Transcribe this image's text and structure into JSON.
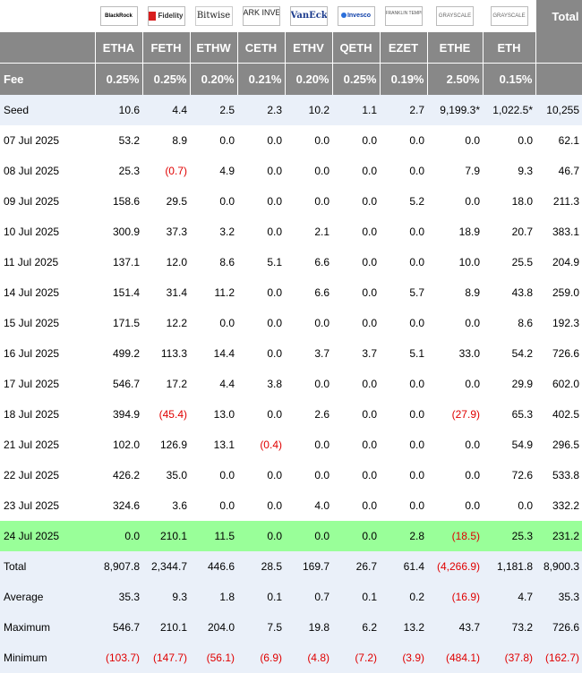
{
  "header": {
    "logos": [
      {
        "name": "blackrock-logo",
        "text": "BlackRock"
      },
      {
        "name": "fidelity-logo",
        "text": "Fidelity"
      },
      {
        "name": "bitwise-logo",
        "text": "Bitwise"
      },
      {
        "name": "ark-logo",
        "text": "ARK INVEST"
      },
      {
        "name": "vaneck-logo",
        "text": "VanEck"
      },
      {
        "name": "invesco-logo",
        "text": "Invesco"
      },
      {
        "name": "franklin-logo",
        "text": "FRANKLIN TEMPLETON"
      },
      {
        "name": "grayscale-logo-ethe",
        "text": "GRAYSCALE"
      },
      {
        "name": "grayscale-logo-eth",
        "text": "GRAYSCALE"
      }
    ],
    "total_label": "Total",
    "tickers": [
      "ETHA",
      "FETH",
      "ETHW",
      "CETH",
      "ETHV",
      "QETH",
      "EZET",
      "ETHE",
      "ETH"
    ],
    "fee_label": "Fee",
    "fees": [
      "0.25%",
      "0.25%",
      "0.20%",
      "0.21%",
      "0.20%",
      "0.25%",
      "0.19%",
      "2.50%",
      "0.15%"
    ]
  },
  "seed": {
    "label": "Seed",
    "values": [
      "10.6",
      "4.4",
      "2.5",
      "2.3",
      "10.2",
      "1.1",
      "2.7",
      "9,199.3*",
      "1,022.5*",
      "10,255"
    ]
  },
  "rows": [
    {
      "label": "07 Jul 2025",
      "values": [
        "53.2",
        "8.9",
        "0.0",
        "0.0",
        "0.0",
        "0.0",
        "0.0",
        "0.0",
        "0.0",
        "62.1"
      ],
      "highlight": false
    },
    {
      "label": "08 Jul 2025",
      "values": [
        "25.3",
        "(0.7)",
        "4.9",
        "0.0",
        "0.0",
        "0.0",
        "0.0",
        "7.9",
        "9.3",
        "46.7"
      ],
      "highlight": false
    },
    {
      "label": "09 Jul 2025",
      "values": [
        "158.6",
        "29.5",
        "0.0",
        "0.0",
        "0.0",
        "0.0",
        "5.2",
        "0.0",
        "18.0",
        "211.3"
      ],
      "highlight": false
    },
    {
      "label": "10 Jul 2025",
      "values": [
        "300.9",
        "37.3",
        "3.2",
        "0.0",
        "2.1",
        "0.0",
        "0.0",
        "18.9",
        "20.7",
        "383.1"
      ],
      "highlight": false
    },
    {
      "label": "11 Jul 2025",
      "values": [
        "137.1",
        "12.0",
        "8.6",
        "5.1",
        "6.6",
        "0.0",
        "0.0",
        "10.0",
        "25.5",
        "204.9"
      ],
      "highlight": false
    },
    {
      "label": "14 Jul 2025",
      "values": [
        "151.4",
        "31.4",
        "11.2",
        "0.0",
        "6.6",
        "0.0",
        "5.7",
        "8.9",
        "43.8",
        "259.0"
      ],
      "highlight": false
    },
    {
      "label": "15 Jul 2025",
      "values": [
        "171.5",
        "12.2",
        "0.0",
        "0.0",
        "0.0",
        "0.0",
        "0.0",
        "0.0",
        "8.6",
        "192.3"
      ],
      "highlight": false
    },
    {
      "label": "16 Jul 2025",
      "values": [
        "499.2",
        "113.3",
        "14.4",
        "0.0",
        "3.7",
        "3.7",
        "5.1",
        "33.0",
        "54.2",
        "726.6"
      ],
      "highlight": false
    },
    {
      "label": "17 Jul 2025",
      "values": [
        "546.7",
        "17.2",
        "4.4",
        "3.8",
        "0.0",
        "0.0",
        "0.0",
        "0.0",
        "29.9",
        "602.0"
      ],
      "highlight": false
    },
    {
      "label": "18 Jul 2025",
      "values": [
        "394.9",
        "(45.4)",
        "13.0",
        "0.0",
        "2.6",
        "0.0",
        "0.0",
        "(27.9)",
        "65.3",
        "402.5"
      ],
      "highlight": false
    },
    {
      "label": "21 Jul 2025",
      "values": [
        "102.0",
        "126.9",
        "13.1",
        "(0.4)",
        "0.0",
        "0.0",
        "0.0",
        "0.0",
        "54.9",
        "296.5"
      ],
      "highlight": false
    },
    {
      "label": "22 Jul 2025",
      "values": [
        "426.2",
        "35.0",
        "0.0",
        "0.0",
        "0.0",
        "0.0",
        "0.0",
        "0.0",
        "72.6",
        "533.8"
      ],
      "highlight": false
    },
    {
      "label": "23 Jul 2025",
      "values": [
        "324.6",
        "3.6",
        "0.0",
        "0.0",
        "4.0",
        "0.0",
        "0.0",
        "0.0",
        "0.0",
        "332.2"
      ],
      "highlight": false
    },
    {
      "label": "24 Jul 2025",
      "values": [
        "0.0",
        "210.1",
        "11.5",
        "0.0",
        "0.0",
        "0.0",
        "2.8",
        "(18.5)",
        "25.3",
        "231.2"
      ],
      "highlight": true
    }
  ],
  "summary": [
    {
      "label": "Total",
      "values": [
        "8,907.8",
        "2,344.7",
        "446.6",
        "28.5",
        "169.7",
        "26.7",
        "61.4",
        "(4,266.9)",
        "1,181.8",
        "8,900.3"
      ]
    },
    {
      "label": "Average",
      "values": [
        "35.3",
        "9.3",
        "1.8",
        "0.1",
        "0.7",
        "0.1",
        "0.2",
        "(16.9)",
        "4.7",
        "35.3"
      ]
    },
    {
      "label": "Maximum",
      "values": [
        "546.7",
        "210.1",
        "204.0",
        "7.5",
        "19.8",
        "6.2",
        "13.2",
        "43.7",
        "73.2",
        "726.6"
      ]
    },
    {
      "label": "Minimum",
      "values": [
        "(103.7)",
        "(147.7)",
        "(56.1)",
        "(6.9)",
        "(4.8)",
        "(7.2)",
        "(3.9)",
        "(484.1)",
        "(37.8)",
        "(162.7)"
      ]
    }
  ],
  "colors": {
    "header_gray": "#888888",
    "seed_summary_bg": "#eaf0f9",
    "highlight_green": "#99ff99",
    "negative_red": "#e00000"
  }
}
